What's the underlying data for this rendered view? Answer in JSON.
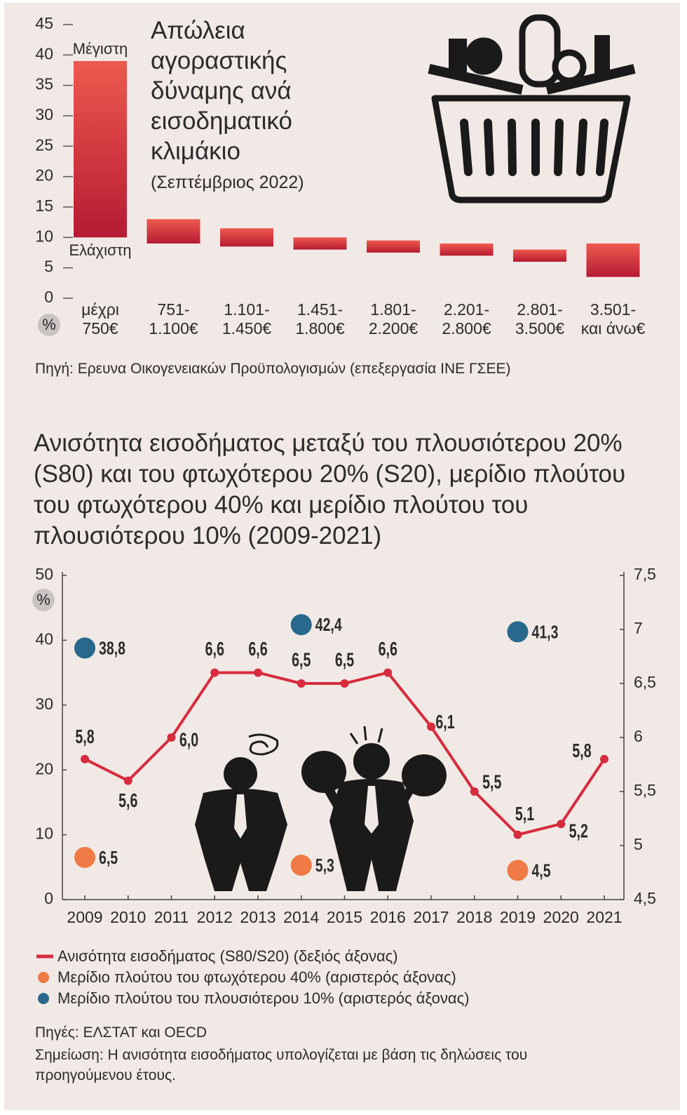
{
  "chart_data": [
    {
      "type": "floating-bar",
      "title": "Απώλεια αγοραστικής δύναμης ανά εισοδηματικό κλιμάκιο",
      "subtitle": "(Σεπτέμβριος 2022)",
      "y_unit": "%",
      "categories": [
        [
          "μέχρι",
          "750€"
        ],
        [
          "751-",
          "1.100€"
        ],
        [
          "1.101-",
          "1.450€"
        ],
        [
          "1.451-",
          "1.800€"
        ],
        [
          "1.801-",
          "2.200€"
        ],
        [
          "2.201-",
          "2.800€"
        ],
        [
          "2.801-",
          "3.500€"
        ],
        [
          "3.501-",
          "και άνω€"
        ]
      ],
      "series": [
        {
          "name": "Ελάχιστη",
          "values": [
            10,
            9,
            8.5,
            8,
            7.5,
            7,
            6,
            3.5
          ]
        },
        {
          "name": "Μέγιστη",
          "values": [
            39,
            13,
            11.5,
            10,
            9.5,
            9,
            8,
            9
          ]
        }
      ],
      "color": "#d2313e",
      "ylim": [
        0,
        45
      ],
      "yticks": [
        0,
        5,
        10,
        15,
        20,
        25,
        30,
        35,
        40,
        45
      ],
      "source": "Πηγή: Ερευνα Οικογενειακών Προϋπολογισμών (επεξεργασία ΙΝΕ ΓΣΕΕ)"
    },
    {
      "type": "line",
      "title": "Ανισότητα εισοδήματος μεταξύ του πλουσιότερου 20% (S80) και του φτωχότερου 20% (S20), μερίδιο πλούτου του φτωχότερου 40% και μερίδιο πλούτου του πλουσιότερου 10% (2009-2021)",
      "y_unit": "%",
      "categories": [
        "2009",
        "2010",
        "2011",
        "2012",
        "2013",
        "2014",
        "2015",
        "2016",
        "2017",
        "2018",
        "2019",
        "2020",
        "2021"
      ],
      "series": [
        {
          "name": "Ανισότητα εισοδήματος (S80/S20) (δεξιός άξονας)",
          "color": "#d62c3e",
          "axis": "y2",
          "values": [
            5.8,
            5.6,
            6.0,
            6.6,
            6.6,
            6.5,
            6.5,
            6.6,
            6.1,
            5.5,
            5.1,
            5.2,
            5.8
          ],
          "value_labels": [
            "5,8",
            "5,6",
            "6,0",
            "6,6",
            "6,6",
            "6,5",
            "6,5",
            "6,6",
            "6,1",
            "5,5",
            "5,1",
            "5,2",
            "5,8"
          ]
        },
        {
          "name": "Μερίδιο πλούτου του φτωχότερου 40% (αριστερός άξονας)",
          "color": "#ef7a45",
          "marker": "dot",
          "values": [
            6.5,
            null,
            null,
            null,
            null,
            5.3,
            null,
            null,
            null,
            null,
            4.5,
            null,
            null
          ],
          "value_labels": [
            "6,5",
            null,
            null,
            null,
            null,
            "5,3",
            null,
            null,
            null,
            null,
            "4,5",
            null,
            null
          ]
        },
        {
          "name": "Μερίδιο πλούτου του πλουσιότερου 10% (αριστερός άξονας)",
          "color": "#27688c",
          "marker": "dot",
          "values": [
            38.8,
            null,
            null,
            null,
            null,
            42.4,
            null,
            null,
            null,
            null,
            41.3,
            null,
            null
          ],
          "value_labels": [
            "38,8",
            null,
            null,
            null,
            null,
            "42,4",
            null,
            null,
            null,
            null,
            "41,3",
            null,
            null
          ]
        }
      ],
      "ylim": [
        0,
        50
      ],
      "yticks": [
        0,
        10,
        20,
        30,
        40,
        50
      ],
      "y2lim": [
        4.5,
        7.5
      ],
      "y2ticks": [
        {
          "value": 4.5,
          "label": "4,5"
        },
        5,
        {
          "value": 5.5,
          "label": "5,5"
        },
        6,
        {
          "value": 6.5,
          "label": "6,5"
        },
        7,
        {
          "value": 7.5,
          "label": "7,5"
        }
      ],
      "source": "Πηγές: ΕΛΣΤΑΤ και OECD",
      "note": "Σημείωση: Η ανισότητα εισοδήματος υπολογίζεται με βάση τις δηλώσεις του προηγούμενου έτους."
    }
  ]
}
